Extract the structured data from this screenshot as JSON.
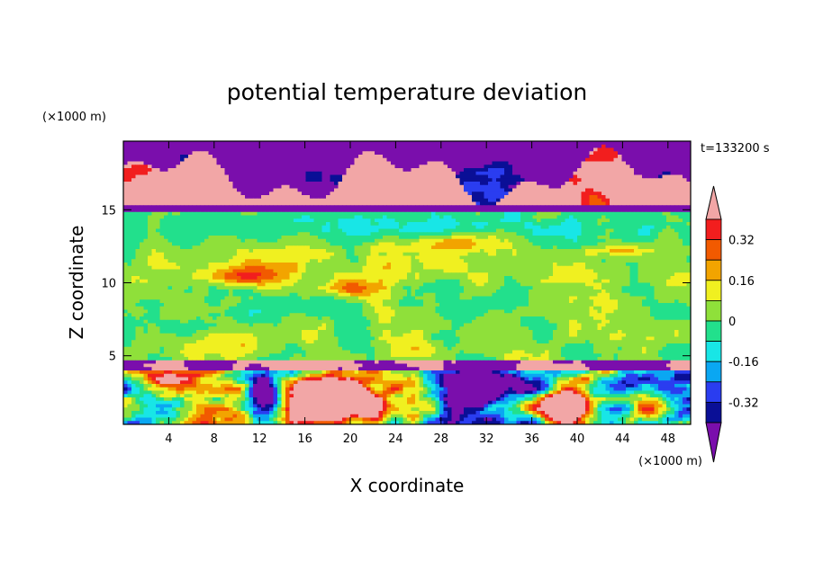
{
  "chart_data": {
    "type": "heatmap",
    "title": "potential temperature deviation",
    "xlabel": "X coordinate",
    "ylabel": "Z coordinate",
    "x_unit": "(×1000 m)",
    "y_unit": "(×1000 m)",
    "time_label": "t=133200 s",
    "xlim": [
      0,
      50
    ],
    "ylim": [
      0.3,
      19.7
    ],
    "x_ticks": [
      4,
      8,
      12,
      16,
      20,
      24,
      28,
      32,
      36,
      40,
      44,
      48
    ],
    "y_ticks": [
      5,
      10,
      15
    ],
    "colorbar": {
      "levels": [
        -0.4,
        -0.32,
        -0.24,
        -0.16,
        -0.08,
        0,
        0.08,
        0.16,
        0.24,
        0.32,
        0.4
      ],
      "colors": [
        "#7a0eac",
        "#0a0f96",
        "#2a3df0",
        "#0aa7f2",
        "#18e6e6",
        "#22e08c",
        "#8fe03a",
        "#f0f020",
        "#f2a400",
        "#f25a00",
        "#f21e1e",
        "#f2a6a6"
      ],
      "tick_labels": [
        "0.32",
        "0.16",
        "0",
        "-0.16",
        "-0.32"
      ],
      "tick_values": [
        0.32,
        0.16,
        0,
        -0.16,
        -0.32
      ]
    }
  }
}
